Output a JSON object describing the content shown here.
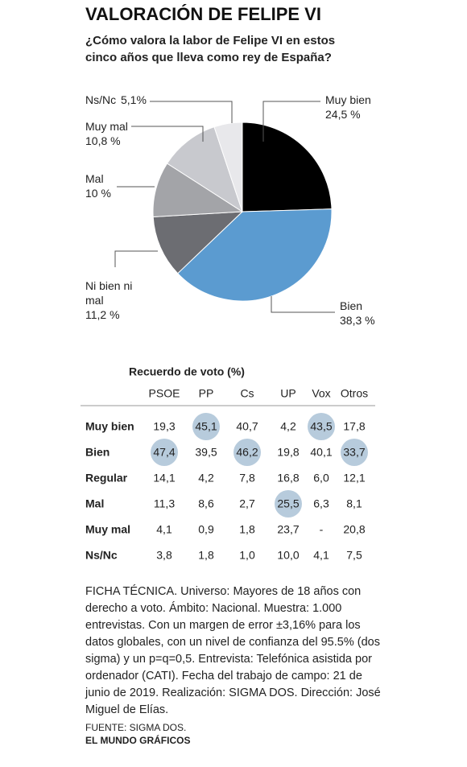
{
  "chart_data": {
    "type": "pie",
    "title": "VALORACIÓN DE FELIPE VI",
    "subtitle": "¿Cómo valora la labor de Felipe VI en estos cinco años que lleva como rey de España?",
    "categories": [
      "Muy bien",
      "Bien",
      "Ni bien ni mal",
      "Mal",
      "Muy mal",
      "Ns/Nc"
    ],
    "values": [
      24.5,
      38.3,
      11.2,
      10,
      10.8,
      5.1
    ],
    "value_labels": [
      "24,5 %",
      "38,3 %",
      "11,2 %",
      "10 %",
      "10,8 %",
      "5,1%"
    ],
    "colors": [
      "#000000",
      "#5b9bd0",
      "#6c6d72",
      "#a3a4a8",
      "#c8c9ce",
      "#e8e8eb"
    ]
  },
  "table": {
    "title": "Recuerdo de voto (%)",
    "columns": [
      "PSOE",
      "PP",
      "Cs",
      "UP",
      "Vox",
      "Otros"
    ],
    "rows": [
      {
        "label": "Muy bien",
        "cells": [
          "19,3",
          "45,1",
          "40,7",
          "4,2",
          "43,5",
          "17,8"
        ],
        "highlight": [
          1,
          4
        ]
      },
      {
        "label": "Bien",
        "cells": [
          "47,4",
          "39,5",
          "46,2",
          "19,8",
          "40,1",
          "33,7"
        ],
        "highlight": [
          0,
          2,
          5
        ]
      },
      {
        "label": "Regular",
        "cells": [
          "14,1",
          "4,2",
          "7,8",
          "16,8",
          "6,0",
          "12,1"
        ],
        "highlight": []
      },
      {
        "label": "Mal",
        "cells": [
          "11,3",
          "8,6",
          "2,7",
          "25,5",
          "6,3",
          "8,1"
        ],
        "highlight": [
          3
        ]
      },
      {
        "label": "Muy mal",
        "cells": [
          "4,1",
          "0,9",
          "1,8",
          "23,7",
          "-",
          "20,8"
        ],
        "highlight": []
      },
      {
        "label": "Ns/Nc",
        "cells": [
          "3,8",
          "1,8",
          "1,0",
          "10,0",
          "4,1",
          "7,5"
        ],
        "highlight": []
      }
    ]
  },
  "note": "FICHA TÉCNICA. Universo: Mayores de 18 años con derecho a voto. Ámbito: Nacional. Muestra: 1.000 entrevistas. Con un margen de error ±3,16% para los datos globales, con un nivel de confianza del 95.5% (dos sigma) y un p=q=0,5. Entrevista: Telefónica asistida por ordenador (CATI). Fecha del trabajo de campo: 21 de junio de 2019. Realización: SIGMA DOS. Dirección: José Miguel de Elías.",
  "source": [
    "FUENTE: SIGMA DOS.",
    "EL MUNDO GRÁFICOS"
  ]
}
